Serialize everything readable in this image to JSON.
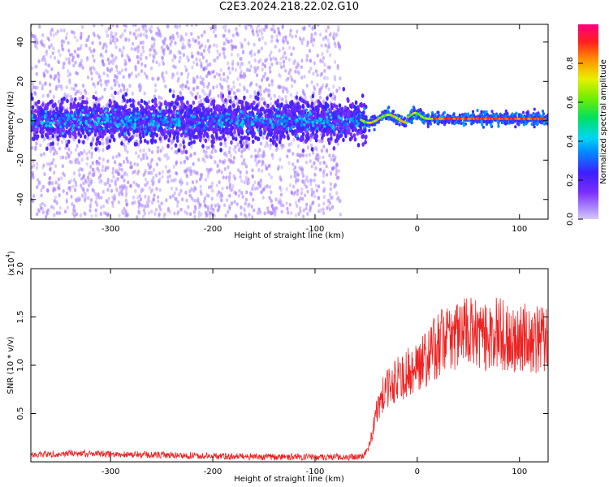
{
  "page": {
    "title": "C2E3.2024.218.22.02.G10"
  },
  "chart_data": [
    {
      "type": "heatmap",
      "title": "C2E3.2024.218.22.02.G10",
      "xlabel": "Height of straight line (km)",
      "ylabel": "Frequency (Hz)",
      "xlim": [
        -378,
        128
      ],
      "ylim": [
        -50,
        49
      ],
      "xticks": [
        -300,
        -200,
        -100,
        0,
        100
      ],
      "yticks": [
        -40,
        -20,
        0,
        20,
        40
      ],
      "colorbar": {
        "label": "Normalized spectral amplitude",
        "range": [
          0,
          1
        ],
        "ticks": [
          0.0,
          0.2,
          0.4,
          0.6,
          0.8
        ],
        "colormap": "rainbow (purple-blue-cyan-green-yellow-red-magenta)"
      },
      "description_of_features": {
        "broad_noise_region_x": [
          -378,
          -75
        ],
        "dense_band_center_hz": 0,
        "dense_band_halfwidth_hz": 9,
        "sparse_scatter_halfwidth_hz": 49,
        "narrow_signal_region_x": [
          -60,
          128
        ],
        "narrow_signal_center_hz": 1
      },
      "grid": false
    },
    {
      "type": "line",
      "xlabel": "Height of straight line (km)",
      "ylabel": "SNR (10 * v/v)",
      "y_multiplier_label": "(x10",
      "y_multiplier_exp": "4",
      "xlim": [
        -378,
        128
      ],
      "ylim": [
        0,
        2.0
      ],
      "xticks": [
        -300,
        -200,
        -100,
        0,
        100
      ],
      "yticks": [
        0.5,
        1.0,
        1.5,
        2.0
      ],
      "yticklabels": [
        "0.5",
        "1.0",
        "1.5",
        "2.0"
      ],
      "series": [
        {
          "color": "#ee2222",
          "x": [
            -378,
            -340,
            -300,
            -250,
            -200,
            -150,
            -100,
            -60,
            -52,
            -48,
            -44,
            -40,
            -36,
            -30,
            -25,
            -20,
            -15,
            -10,
            -5,
            0,
            10,
            20,
            30,
            40,
            50,
            60,
            70,
            80,
            90,
            100,
            110,
            120,
            128
          ],
          "y": [
            0.07,
            0.09,
            0.08,
            0.07,
            0.06,
            0.05,
            0.05,
            0.05,
            0.06,
            0.15,
            0.3,
            0.5,
            0.65,
            0.75,
            0.8,
            0.85,
            0.88,
            0.92,
            0.95,
            1.0,
            1.1,
            1.2,
            1.3,
            1.32,
            1.35,
            1.3,
            1.3,
            1.35,
            1.25,
            1.3,
            1.28,
            1.25,
            1.3
          ]
        }
      ],
      "grid": false
    }
  ]
}
